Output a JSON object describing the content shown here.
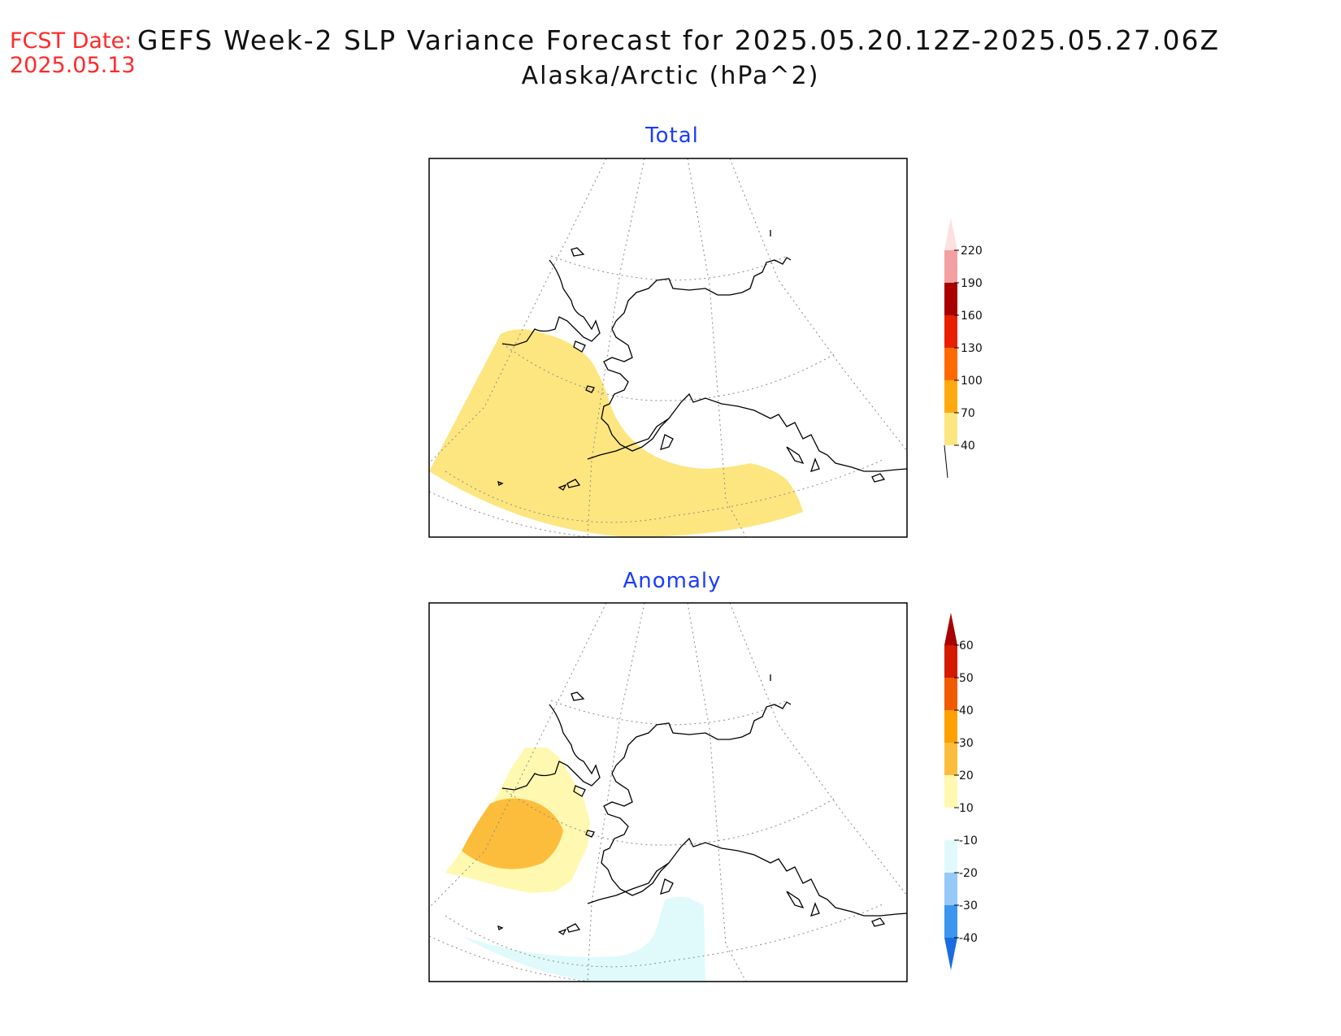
{
  "header": {
    "fcst_label": "FCST Date:",
    "fcst_date": "2025.05.13",
    "title": "GEFS Week-2 SLP Variance Forecast for 2025.05.20.12Z-2025.05.27.06Z",
    "subtitle": "Alaska/Arctic (hPa^2)"
  },
  "panels": [
    {
      "title": "Total",
      "colorbar": {
        "levels": [
          "40",
          "70",
          "100",
          "130",
          "160",
          "190",
          "220"
        ],
        "colors": [
          "#fde680",
          "#fdaa10",
          "#fd6a00",
          "#e82000",
          "#a80000",
          "#f4a0a0",
          "#fde0e0"
        ]
      }
    },
    {
      "title": "Anomaly",
      "colorbar": {
        "levels": [
          "-40",
          "-30",
          "-20",
          "-10",
          "10",
          "20",
          "30",
          "40",
          "50",
          "60"
        ],
        "colors": [
          "#1a6ce0",
          "#3c96f0",
          "#96c8f8",
          "#e0fafc",
          "#ffffff",
          "#fff8b0",
          "#fdbd3c",
          "#fda000",
          "#f05a00",
          "#d41a00",
          "#a80000"
        ]
      }
    }
  ]
}
